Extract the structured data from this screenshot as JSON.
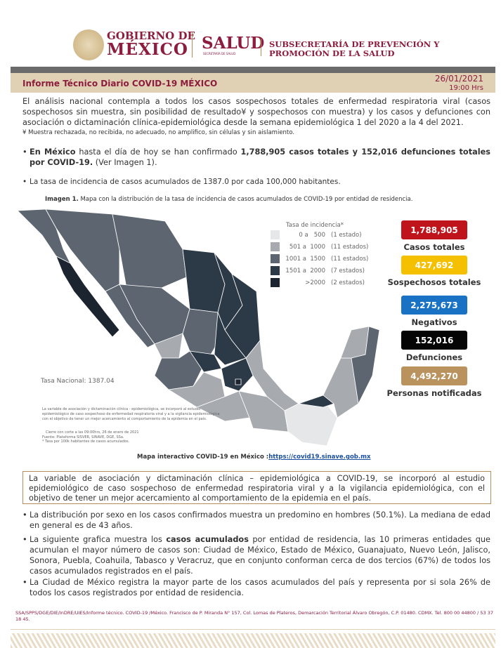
{
  "header": {
    "gob_line1": "GOBIERNO DE",
    "gob_line2": "MÉXICO",
    "salud": "SALUD",
    "salud_sub": "SECRETARÍA DE SALUD",
    "subsec_line1": "SUBSECRETARÍA DE PREVENCIÓN Y",
    "subsec_line2": "PROMOCIÓN DE LA SALUD"
  },
  "report": {
    "title": "Informe Técnico Diario COVID-19 MÉXICO",
    "date": "26/01/2021",
    "time": "19:00 Hrs"
  },
  "intro": "El análisis nacional contempla a todos los casos sospechosos totales de enfermedad respiratoria viral (casos sospechosos sin muestra, sin posibilidad de resultado¥ y sospechosos con muestra) y los casos y defunciones con asociación o dictaminación clínica-epidemiológica desde la semana epidemiológica 1 del 2020 a la 4 del 2021.",
  "footnote": "¥ Muestra rechazada, no recibida, no adecuado, no amplifico, sin células y sin aislamiento.",
  "bullet1": {
    "b1": "En México",
    "t1": " hasta el día de hoy se han confirmado ",
    "b2": "1,788,905 casos totales y 152,016 defunciones totales por COVID-19.",
    "t2": " (Ver Imagen 1)."
  },
  "bullet2": "La tasa de incidencia de casos acumulados de 1387.0 por cada 100,000 habitantes.",
  "figure": {
    "label": "Imagen 1.",
    "caption": " Mapa con la distribución de la tasa de incidencia de casos acumulados de COVID-19 por entidad de residencia.",
    "legend_title": "Tasa de incidencia*",
    "legend": [
      {
        "range": "0 a   500",
        "count": "(1 estado)",
        "color": "#e6e7e8"
      },
      {
        "range": "501 a  1000",
        "count": "(11 estados)",
        "color": "#a7abb0"
      },
      {
        "range": "1001 a  1500",
        "count": "(11 estados)",
        "color": "#5d6670"
      },
      {
        "range": "1501 a  2000",
        "count": "(7 estados)",
        "color": "#2c3a48"
      },
      {
        "range": ">2000",
        "count": "(2 estados)",
        "color": "#1c2430"
      }
    ],
    "national_rate": "Tasa Nacional: 1387.04",
    "map_note": "La variable de asociación y dictaminación clínica - epidemiológica, se incorporó al estudio epidemiológico de caso sospechoso de enfermedad respiratoria viral y a la vigilancia epidemiológica con el objetivo de tener un mejor acercamiento al comportamiento de la epidemia en el país.",
    "cutoff": "Cierre con corte a las 09:00hrs, 26 de enero de 2021",
    "source": "Fuente: Plataforma SISVER, SINAVE, DGE, SSa.",
    "rate_note": "* Tasa por 100k habitantes de casos acumulados."
  },
  "stats": [
    {
      "value": "1,788,905",
      "label": "Casos totales",
      "color": "#c0141c"
    },
    {
      "value": "427,692",
      "label": "Sospechosos totales",
      "color": "#f5c000"
    },
    {
      "value": "2,275,673",
      "label": "Negativos",
      "color": "#1a72c4"
    },
    {
      "value": "152,016",
      "label": "Defunciones",
      "color": "#050505"
    },
    {
      "value": "4,492,270",
      "label": "Personas notificadas",
      "color": "#b9925e"
    }
  ],
  "map_link": {
    "label": "Mapa interactivo COVID-19 en México :",
    "url": "https://covid19.sinave.gob.mx"
  },
  "note_box": "La variable de asociación y dictaminación clínica – epidemiológica a COVID-19, se incorporó al estudio epidemiológico de caso sospechoso de enfermedad respiratoria viral y a la vigilancia epidemiológica, con el objetivo de tener un mejor acercamiento al comportamiento de la epidemia en el país.",
  "bullets": [
    {
      "t1": "La distribución por sexo en los casos confirmados muestra un predomino en hombres (50.1%). La mediana de edad en general es de 43 años.",
      "b": "",
      "t2": ""
    },
    {
      "t1": "La siguiente grafica muestra los ",
      "b": "casos acumulados",
      "t2": " por entidad de residencia, las 10 primeras entidades que acumulan el mayor número de casos son: Ciudad de México, Estado de México, Guanajuato, Nuevo León, Jalisco, Sonora, Puebla, Coahuila, Tabasco y Veracruz, que en conjunto conforman cerca de dos tercios (67%) de todos los casos acumulados registrados en el país."
    },
    {
      "t1": "La Ciudad de México registra la mayor parte de los casos acumulados del país y representa por si sola 26% de todos los casos registrados por entidad de residencia.",
      "b": "",
      "t2": ""
    }
  ],
  "footer": "SSA/SPPS/DGE/DIE/InDRE/UIES/Informe técnico. COVID-19 /México. Francisco de P. Miranda N° 157, Col. Lomas de Plateros, Demarcación Territorial Álvaro Obregón, C.P. 01480. CDMX. Tel. 800 00 44800 / 53 37 18 45."
}
